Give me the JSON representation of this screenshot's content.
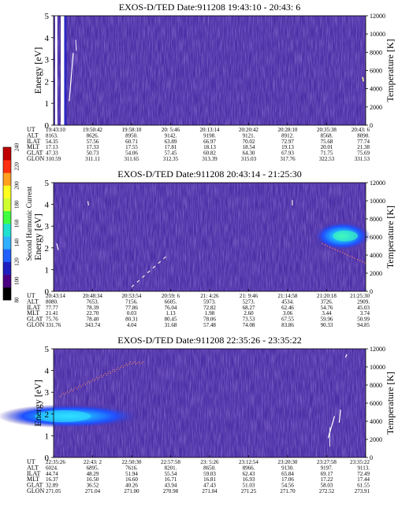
{
  "colors": {
    "background": "#4a2fa6",
    "texture_a": "#3a2a90",
    "texture_b": "#4f3bb5",
    "texture_c": "#5b49c2",
    "texture_d": "#2f2880"
  },
  "colorbar": {
    "label": "Second Harmonic Current",
    "ticks": [
      "80",
      "100",
      "120",
      "140",
      "160",
      "180",
      "200",
      "220",
      "240"
    ],
    "colors": [
      "#000000",
      "#4b0082",
      "#1f1fbf",
      "#2060ff",
      "#30b0ff",
      "#20e0d0",
      "#40ff40",
      "#d0ff30",
      "#ffff20",
      "#ffa020",
      "#ff3010",
      "#c00000"
    ]
  },
  "chart_data": [
    {
      "type": "heatmap",
      "title": "EXOS-D/TED   Date:911208  19:43:10 - 20:43: 6",
      "ylabel": "Energy [eV]",
      "y2label": "Temperature [K]",
      "yticks": [
        "0",
        "1",
        "2",
        "3",
        "4",
        "5"
      ],
      "y2ticks": [
        "0",
        "2000",
        "4000",
        "6000",
        "8000",
        "10000",
        "12000"
      ],
      "ylim": [
        0,
        5
      ],
      "y2lim": [
        0,
        12000
      ],
      "row_labels": [
        "UT",
        "ALT",
        "ILAT",
        "MLT",
        "GLAT",
        "GLON"
      ],
      "columns": [
        [
          "19:43:10",
          "8163.",
          "54.35",
          "17.13",
          "47.33",
          "310.59"
        ],
        [
          "19:50:42",
          "8626.",
          "57.56",
          "17.33",
          "50.73",
          "311.11"
        ],
        [
          "19:58:10",
          "8950.",
          "60.71",
          "17.55",
          "54.06",
          "311.65"
        ],
        [
          "20: 5:46",
          "9142.",
          "63.89",
          "17.81",
          "57.45",
          "312.35"
        ],
        [
          "20:13:14",
          "9198.",
          "66.97",
          "18.13",
          "60.82",
          "313.39"
        ],
        [
          "20:20:42",
          "9121.",
          "70.02",
          "18.54",
          "64.30",
          "315.03"
        ],
        [
          "20:28:10",
          "8912.",
          "72.97",
          "19.13",
          "67.93",
          "317.76"
        ],
        [
          "20:35:38",
          "8568.",
          "75.68",
          "20.01",
          "71.75",
          "322.53"
        ],
        [
          "20:43: 6",
          "8090.",
          "77.74",
          "21.38",
          "75.69",
          "331.53"
        ]
      ]
    },
    {
      "type": "heatmap",
      "title": "EXOS-D/TED   Date:911208  20:43:14 - 21:25:30",
      "ylabel": "Energy [eV]",
      "y2label": "Temperature [K]",
      "yticks": [
        "0",
        "1",
        "2",
        "3",
        "4",
        "5"
      ],
      "y2ticks": [
        "0",
        "2000",
        "4000",
        "6000",
        "8000",
        "10000",
        "12000"
      ],
      "ylim": [
        0,
        5
      ],
      "y2lim": [
        0,
        12000
      ],
      "row_labels": [
        "UT",
        "ALT",
        "ILAT",
        "MLT",
        "GLAT",
        "GLON"
      ],
      "columns": [
        [
          "20:43:14",
          "8080.",
          "77.77",
          "21.41",
          "75.76",
          "331.76"
        ],
        [
          "20:48:34",
          "7653.",
          "78.39",
          "22.70",
          "78.40",
          "343.74"
        ],
        [
          "20:53:54",
          "7156.",
          "77.86",
          "0.03",
          "80.31",
          "4.04"
        ],
        [
          "20:59: 6",
          "6605.",
          "76.04",
          "1.13",
          "80.45",
          "31.68"
        ],
        [
          "21: 4:26",
          "5973.",
          "72.82",
          "1.98",
          "78.06",
          "57.48"
        ],
        [
          "21: 9:46",
          "5273.",
          "68.27",
          "2.60",
          "73.53",
          "74.08"
        ],
        [
          "21:14:58",
          "4534.",
          "62.46",
          "3.06",
          "67.55",
          "83.86"
        ],
        [
          "21:20:18",
          "3726.",
          "54.76",
          "3.44",
          "59.96",
          "90.33"
        ],
        [
          "21:25:30",
          "2909.",
          "45.03",
          "3.74",
          "50.99",
          "94.85"
        ]
      ]
    },
    {
      "type": "heatmap",
      "title": "EXOS-D/TED   Date:911208  22:35:26 - 23:35:22",
      "ylabel": "Energy [eV]",
      "y2label": "Temperature [K]",
      "yticks": [
        "0",
        "1",
        "2",
        "3",
        "4",
        "5"
      ],
      "y2ticks": [
        "0",
        "2000",
        "4000",
        "6000",
        "8000",
        "10000",
        "12000"
      ],
      "ylim": [
        0,
        5
      ],
      "y2lim": [
        0,
        12000
      ],
      "row_labels": [
        "UT",
        "ALT",
        "ILAT",
        "MLT",
        "GLAT",
        "GLON"
      ],
      "columns": [
        [
          "22:35:26",
          "6024.",
          "44.74",
          "16.37",
          "32.89",
          "271.05"
        ],
        [
          "22:43: 2",
          "6895.",
          "48.29",
          "16.50",
          "36.52",
          "271.04"
        ],
        [
          "22:50:30",
          "7616.",
          "51.94",
          "16.60",
          "40.26",
          "271.00"
        ],
        [
          "22:57:58",
          "8201.",
          "55.54",
          "16.71",
          "43.94",
          "270.98"
        ],
        [
          "23: 5:26",
          "8650.",
          "59.03",
          "16.81",
          "47.43",
          "271.04"
        ],
        [
          "23:12:54",
          "8966.",
          "62.43",
          "16.93",
          "51.03",
          "271.25"
        ],
        [
          "23:20:30",
          "9130.",
          "65.84",
          "17.06",
          "54.56",
          "271.70"
        ],
        [
          "23:27:58",
          "9197.",
          "69.17",
          "17.22",
          "58.03",
          "272.52"
        ],
        [
          "23:35:22",
          "9113.",
          "72.49",
          "17.44",
          "61.55",
          "273.91"
        ]
      ]
    }
  ]
}
